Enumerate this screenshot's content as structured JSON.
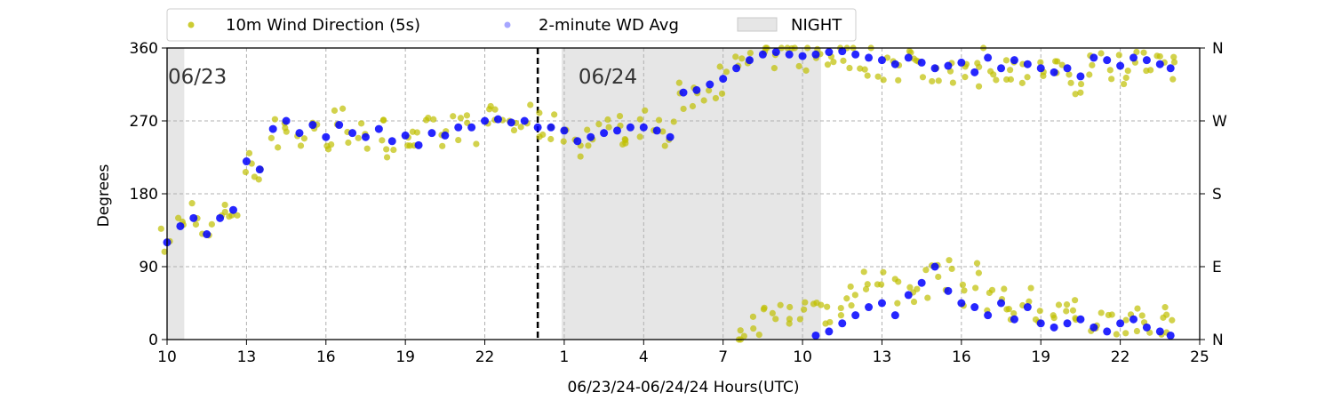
{
  "chart_data": {
    "type": "scatter",
    "legend": {
      "placement": "top",
      "entries": [
        {
          "label": "10m Wind Direction (5s)",
          "kind": "point",
          "color": "#bfbf00"
        },
        {
          "label": "2-minute WD Avg",
          "kind": "point",
          "color": "#0000ff"
        },
        {
          "label": "NIGHT",
          "kind": "patch",
          "color": "#e6e6e6"
        }
      ]
    },
    "ylabel": "Degrees",
    "xlabel": "06/23/24-06/24/24  Hours(UTC)",
    "ylim": [
      0,
      360
    ],
    "yticks": [
      "0",
      "90",
      "180",
      "270",
      "360"
    ],
    "y2ticks": [
      "N",
      "E",
      "S",
      "W",
      "N"
    ],
    "xlim_hours_since_0623_00": [
      10,
      49
    ],
    "xticks": [
      "10",
      "13",
      "16",
      "19",
      "22",
      "1",
      "4",
      "7",
      "10",
      "13",
      "16",
      "19",
      "22",
      "25"
    ],
    "grid": true,
    "day_labels": [
      "06/23",
      "06/24"
    ],
    "day_divider_x": 24,
    "night_spans": [
      [
        10,
        10.65
      ],
      [
        24.9,
        34.7
      ]
    ],
    "series": [
      {
        "name": "10m Wind Direction (5s)",
        "color": "#bfbf00",
        "x": [
          10,
          10.5,
          11,
          11.5,
          12,
          12.5,
          13,
          13.5,
          14,
          14.5,
          15,
          15.5,
          16,
          16.5,
          17,
          17.5,
          18,
          18.5,
          19,
          19.5,
          20,
          20.5,
          21,
          21.5,
          22,
          22.5,
          23,
          23.5,
          24,
          24.5,
          25,
          25.5,
          26,
          26.5,
          27,
          27.5,
          28,
          28.5,
          29,
          29.5,
          30,
          30.5,
          31,
          31.5,
          32,
          32.5,
          33,
          33.5,
          34,
          34.5,
          35,
          35.5,
          36,
          36.5,
          37,
          37.5,
          38,
          38.5,
          39,
          39.5,
          40,
          40.5,
          41,
          41.5,
          42,
          42.5,
          43,
          43.5,
          44,
          44.5,
          45,
          45.5,
          46,
          46.5,
          47,
          47.5,
          47.9
        ],
        "y": [
          120,
          140,
          160,
          130,
          150,
          160,
          215,
          210,
          255,
          270,
          250,
          260,
          245,
          270,
          260,
          250,
          255,
          245,
          250,
          240,
          255,
          250,
          265,
          260,
          270,
          275,
          265,
          270,
          265,
          260,
          258,
          245,
          250,
          255,
          260,
          262,
          265,
          260,
          250,
          300,
          305,
          315,
          320,
          335,
          345,
          350,
          352,
          350,
          348,
          350,
          352,
          355,
          350,
          345,
          340,
          335,
          345,
          340,
          330,
          335,
          340,
          325,
          345,
          330,
          340,
          335,
          330,
          325,
          330,
          320,
          345,
          340,
          335,
          345,
          340,
          335,
          330
        ],
        "x_low": [
          31.5,
          32,
          32.5,
          33,
          33.5,
          34,
          34.5,
          35,
          35.5,
          36,
          36.5,
          37,
          37.5,
          38,
          38.5,
          39,
          39.5,
          40,
          40.5,
          41,
          41.5,
          42,
          42.5,
          43,
          43.5,
          44,
          44.5,
          45,
          45.5,
          46,
          46.5,
          47,
          47.5,
          47.9
        ],
        "y_low": [
          5,
          15,
          25,
          30,
          30,
          35,
          40,
          35,
          45,
          60,
          70,
          80,
          60,
          55,
          70,
          90,
          80,
          60,
          75,
          55,
          45,
          35,
          50,
          30,
          25,
          30,
          35,
          25,
          20,
          25,
          30,
          25,
          20,
          15
        ]
      },
      {
        "name": "2-minute WD Avg",
        "color": "#0000ff",
        "x": [
          10,
          10.5,
          11,
          11.5,
          12,
          12.5,
          13,
          13.5,
          14,
          14.5,
          15,
          15.5,
          16,
          16.5,
          17,
          17.5,
          18,
          18.5,
          19,
          19.5,
          20,
          20.5,
          21,
          21.5,
          22,
          22.5,
          23,
          23.5,
          24,
          24.5,
          25,
          25.5,
          26,
          26.5,
          27,
          27.5,
          28,
          28.5,
          29,
          29.5,
          30,
          30.5,
          31,
          31.5,
          32,
          32.5,
          33,
          33.5,
          34,
          34.5,
          35,
          35.5,
          36,
          36.5,
          37,
          37.5,
          38,
          38.5,
          39,
          39.5,
          40,
          40.5,
          41,
          41.5,
          42,
          42.5,
          43,
          43.5,
          44,
          44.5,
          45,
          45.5,
          46,
          46.5,
          47,
          47.5,
          47.9
        ],
        "y": [
          120,
          140,
          150,
          130,
          150,
          160,
          220,
          210,
          260,
          270,
          255,
          265,
          250,
          265,
          255,
          250,
          260,
          245,
          252,
          240,
          255,
          252,
          262,
          262,
          270,
          272,
          268,
          270,
          262,
          262,
          258,
          245,
          250,
          255,
          258,
          262,
          262,
          258,
          250,
          305,
          308,
          315,
          322,
          335,
          345,
          352,
          355,
          352,
          350,
          352,
          355,
          356,
          352,
          348,
          345,
          340,
          348,
          342,
          335,
          338,
          342,
          330,
          348,
          335,
          345,
          340,
          335,
          330,
          335,
          325,
          348,
          345,
          338,
          348,
          345,
          340,
          335
        ],
        "x_low": [
          34.5,
          35,
          35.5,
          36,
          36.5,
          37,
          37.5,
          38,
          38.5,
          39,
          39.5,
          40,
          40.5,
          41,
          41.5,
          42,
          42.5,
          43,
          43.5,
          44,
          44.5,
          45,
          45.5,
          46,
          46.5,
          47,
          47.5,
          47.9
        ],
        "y_low": [
          5,
          10,
          20,
          30,
          40,
          45,
          30,
          55,
          70,
          90,
          60,
          45,
          40,
          30,
          45,
          25,
          40,
          20,
          15,
          20,
          25,
          15,
          10,
          20,
          25,
          15,
          10,
          5
        ]
      }
    ]
  }
}
